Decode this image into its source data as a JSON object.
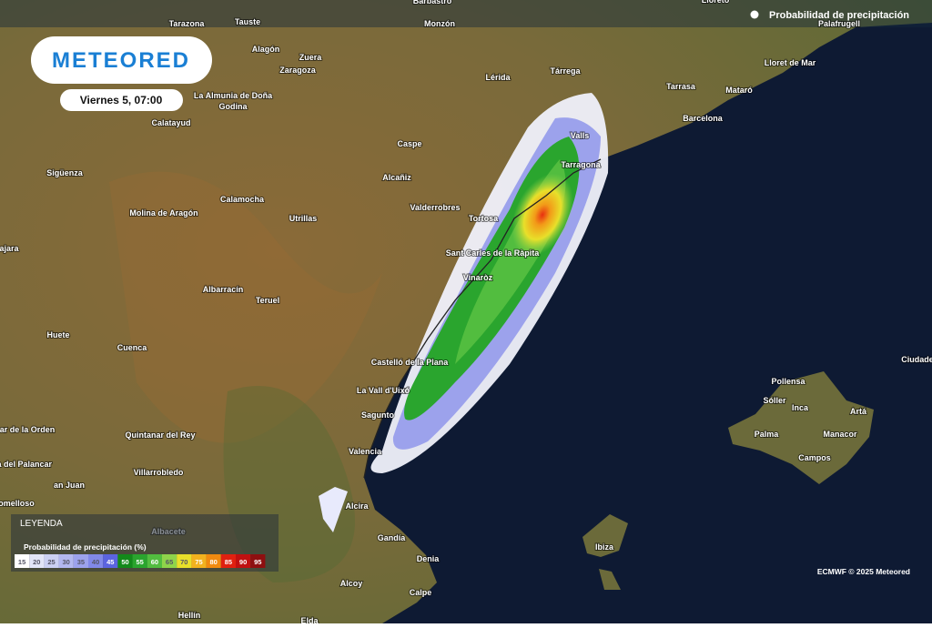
{
  "header": {
    "title": "Probabilidad de precipitación",
    "logo": "METEORED",
    "date": "Viernes 5, 07:00"
  },
  "legend": {
    "title": "LEYENDA",
    "subtitle": "Probabilidad de precipitación (%)",
    "items": [
      {
        "value": 15,
        "color": "#ffffff"
      },
      {
        "value": 20,
        "color": "#e2e5f7"
      },
      {
        "value": 25,
        "color": "#cbd0f2"
      },
      {
        "value": 30,
        "color": "#b3b8ef"
      },
      {
        "value": 35,
        "color": "#9ca2ec"
      },
      {
        "value": 40,
        "color": "#8189e8"
      },
      {
        "value": 45,
        "color": "#5b64e0"
      },
      {
        "value": 50,
        "color": "#138a1a"
      },
      {
        "value": 55,
        "color": "#2aa52e"
      },
      {
        "value": 60,
        "color": "#52bd3f"
      },
      {
        "value": 65,
        "color": "#8fd44a"
      },
      {
        "value": 70,
        "color": "#e8e02a"
      },
      {
        "value": 75,
        "color": "#f2b21e"
      },
      {
        "value": 80,
        "color": "#f08a10"
      },
      {
        "value": 85,
        "color": "#e02010"
      },
      {
        "value": 90,
        "color": "#c01010"
      },
      {
        "value": 95,
        "color": "#8e0f10"
      }
    ]
  },
  "places": [
    "Barbastro",
    "Tarazona",
    "Tauste",
    "Monzón",
    "Lloreto",
    "Palafrugell",
    "Zuera",
    "Alagón",
    "Zaragoza",
    "Lérida",
    "Tárrega",
    "Lloret de Mar",
    "Tarrasa",
    "Mataró",
    "Barcelona",
    "La Almunia de Doña",
    "Godina",
    "Calatayud",
    "Caspe",
    "Valls",
    "Tarragona",
    "Sigüenza",
    "Alcañiz",
    "Calamocha",
    "Molina de Aragón",
    "Utrillas",
    "Valderrobres",
    "Tortosa",
    "Sant Carles de la Ràpita",
    "Vinaròz",
    "ajara",
    "Albarracín",
    "Teruel",
    "Huete",
    "Cuenca",
    "Castelló de la Plana",
    "La Vall d'Uixó",
    "Sagunto",
    "Valencia",
    "ar de la Orden",
    "Motilla del Palancar",
    "an Juan",
    "Villarrobledo",
    "Quintanar del Rey",
    "omelloso",
    "Alcira",
    "Albacete",
    "Gandía",
    "Denia",
    "Alcoy",
    "Calpe",
    "Hellín",
    "Elda",
    "Pollensa",
    "Sóller",
    "Inca",
    "Artá",
    "Palma",
    "Manacor",
    "Campos",
    "Ibiza",
    "Ciudade"
  ],
  "credit": "ECMWF © 2025 Meteored"
}
